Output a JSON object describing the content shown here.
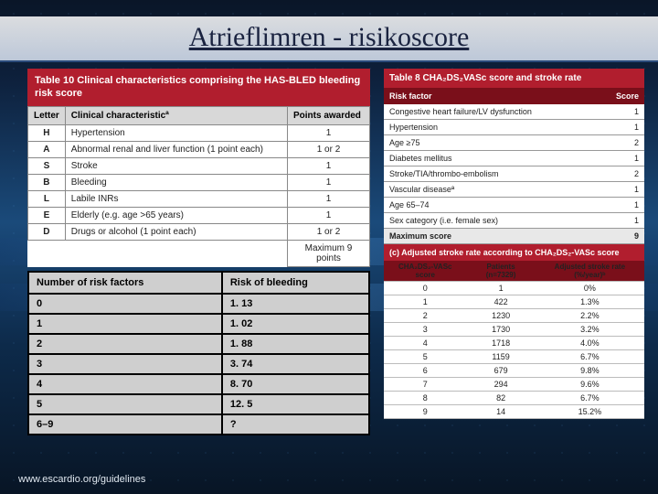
{
  "title": "Atrieflimren - risikoscore",
  "source": "www.escardio.org/guidelines",
  "table10": {
    "title": "Table 10  Clinical characteristics comprising the HAS-BLED bleeding risk score",
    "columns": [
      "Letter",
      "Clinical characteristicª",
      "Points awarded"
    ],
    "rows": [
      [
        "H",
        "Hypertension",
        "1"
      ],
      [
        "A",
        "Abnormal renal and liver function (1 point each)",
        "1 or 2"
      ],
      [
        "S",
        "Stroke",
        "1"
      ],
      [
        "B",
        "Bleeding",
        "1"
      ],
      [
        "L",
        "Labile INRs",
        "1"
      ],
      [
        "E",
        "Elderly (e.g. age >65 years)",
        "1"
      ],
      [
        "D",
        "Drugs or alcohol (1 point each)",
        "1 or 2"
      ]
    ],
    "footer": "Maximum 9 points"
  },
  "riskTable": {
    "columns": [
      "Number of risk factors",
      "Risk of bleeding"
    ],
    "rows": [
      [
        "0",
        "1. 13"
      ],
      [
        "1",
        "1. 02"
      ],
      [
        "2",
        "1. 88"
      ],
      [
        "3",
        "3. 74"
      ],
      [
        "4",
        "8. 70"
      ],
      [
        "5",
        "12. 5"
      ],
      [
        "6–9",
        "?"
      ]
    ]
  },
  "table8": {
    "title": "Table 8  CHA₂DS₂VASc score and stroke rate",
    "headerLeft": "Risk factor",
    "headerRight": "Score",
    "rows": [
      [
        "Congestive heart failure/LV dysfunction",
        "1"
      ],
      [
        "Hypertension",
        "1"
      ],
      [
        "Age ≥75",
        "2"
      ],
      [
        "Diabetes mellitus",
        "1"
      ],
      [
        "Stroke/TIA/thrombo-embolism",
        "2"
      ],
      [
        "Vascular diseaseª",
        "1"
      ],
      [
        "Age 65–74",
        "1"
      ],
      [
        "Sex category (i.e. female sex)",
        "1"
      ]
    ],
    "maxRow": [
      "Maximum score",
      "9"
    ]
  },
  "table8c": {
    "title": "(c) Adjusted stroke rate according to CHA₂DS₂-VASc score",
    "columns": [
      "CHA₂DS₂-VASc score",
      "Patients (n=7329)",
      "Adjusted stroke rate (%/year)ᵇ"
    ],
    "rows": [
      [
        "0",
        "1",
        "0%"
      ],
      [
        "1",
        "422",
        "1.3%"
      ],
      [
        "2",
        "1230",
        "2.2%"
      ],
      [
        "3",
        "1730",
        "3.2%"
      ],
      [
        "4",
        "1718",
        "4.0%"
      ],
      [
        "5",
        "1159",
        "6.7%"
      ],
      [
        "6",
        "679",
        "9.8%"
      ],
      [
        "7",
        "294",
        "9.6%"
      ],
      [
        "8",
        "82",
        "6.7%"
      ],
      [
        "9",
        "14",
        "15.2%"
      ]
    ]
  }
}
